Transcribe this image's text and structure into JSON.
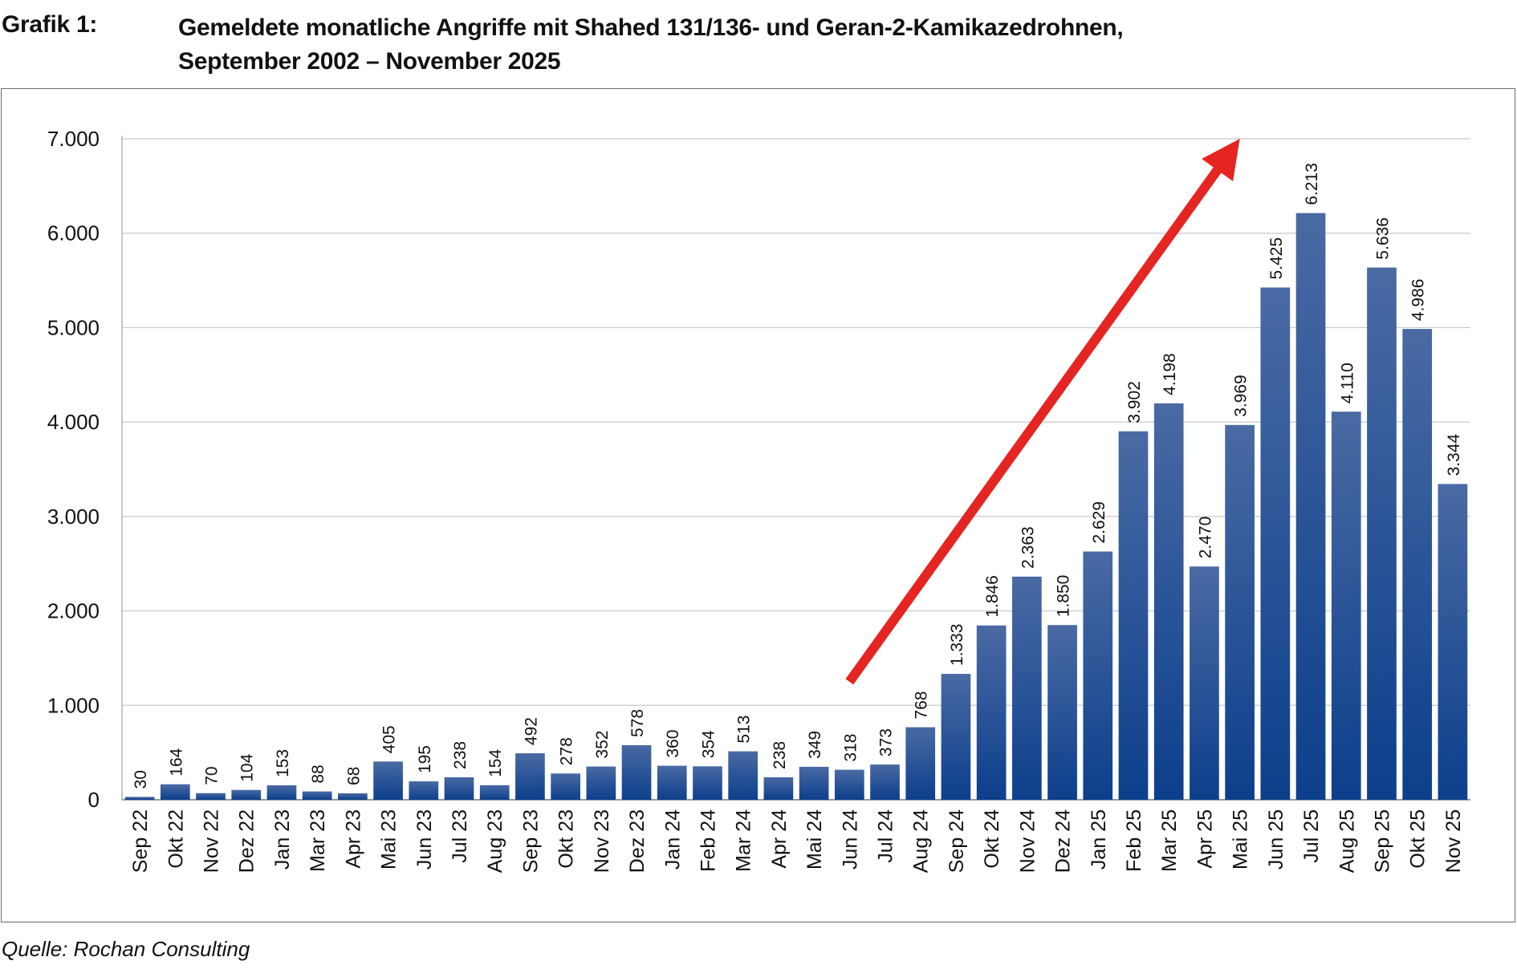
{
  "header": {
    "label": "Grafik 1:",
    "title_line1": "Gemeldete monatliche Angriffe mit Shahed 131/136- und Geran-2-Kamikazedrohnen,",
    "title_line2": "September 2002 – November 2025"
  },
  "footer": {
    "source": "Quelle: Rochan Consulting"
  },
  "colors": {
    "bar_top": "#4a6aa3",
    "bar_bottom": "#0c3f8c",
    "arrow": "#e52521",
    "grid": "#c8c8c8",
    "axis": "#9a9a9a"
  },
  "chart_data": {
    "type": "bar",
    "title": "Gemeldete monatliche Angriffe mit Shahed 131/136- und Geran-2-Kamikazedrohnen, September 2002 – November 2025",
    "xlabel": "",
    "ylabel": "",
    "ylim": [
      0,
      7000
    ],
    "yticks": [
      0,
      1000,
      2000,
      3000,
      4000,
      5000,
      6000,
      7000
    ],
    "ytick_labels": [
      "0",
      "1.000",
      "2.000",
      "3.000",
      "4.000",
      "5.000",
      "6.000",
      "7.000"
    ],
    "grid": true,
    "categories": [
      "Sep 22",
      "Okt 22",
      "Nov 22",
      "Dez 22",
      "Jan 23",
      "Mar 23",
      "Apr 23",
      "Mai 23",
      "Jun 23",
      "Jul 23",
      "Aug 23",
      "Sep 23",
      "Okt 23",
      "Nov 23",
      "Dez 23",
      "Jan 24",
      "Feb 24",
      "Mar 24",
      "Apr 24",
      "Mai 24",
      "Jun 24",
      "Jul 24",
      "Aug 24",
      "Sep 24",
      "Okt 24",
      "Nov 24",
      "Dez 24",
      "Jan 25",
      "Feb 25",
      "Mar 25",
      "Apr 25",
      "Mai 25",
      "Jun 25",
      "Jul 25",
      "Aug 25",
      "Sep 25",
      "Okt 25",
      "Nov 25"
    ],
    "values": [
      30,
      164,
      70,
      104,
      153,
      88,
      68,
      405,
      195,
      238,
      154,
      492,
      278,
      352,
      578,
      360,
      354,
      513,
      238,
      349,
      318,
      373,
      768,
      1333,
      1846,
      2363,
      1850,
      2629,
      3902,
      4198,
      2470,
      3969,
      5425,
      6213,
      4110,
      5636,
      4986,
      3344
    ],
    "value_labels": [
      "30",
      "164",
      "70",
      "104",
      "153",
      "88",
      "68",
      "405",
      "195",
      "238",
      "154",
      "492",
      "278",
      "352",
      "578",
      "360",
      "354",
      "513",
      "238",
      "349",
      "318",
      "373",
      "768",
      "1.333",
      "1.846",
      "2.363",
      "1.850",
      "2.629",
      "3.902",
      "4.198",
      "2.470",
      "3.969",
      "5.425",
      "6.213",
      "4.110",
      "5.636",
      "4.986",
      "3.344"
    ],
    "annotations": [
      {
        "type": "trend-arrow",
        "from": {
          "category": "Jun 24",
          "value": 1250
        },
        "to": {
          "category": "Mai 25",
          "value": 7000
        }
      }
    ]
  }
}
